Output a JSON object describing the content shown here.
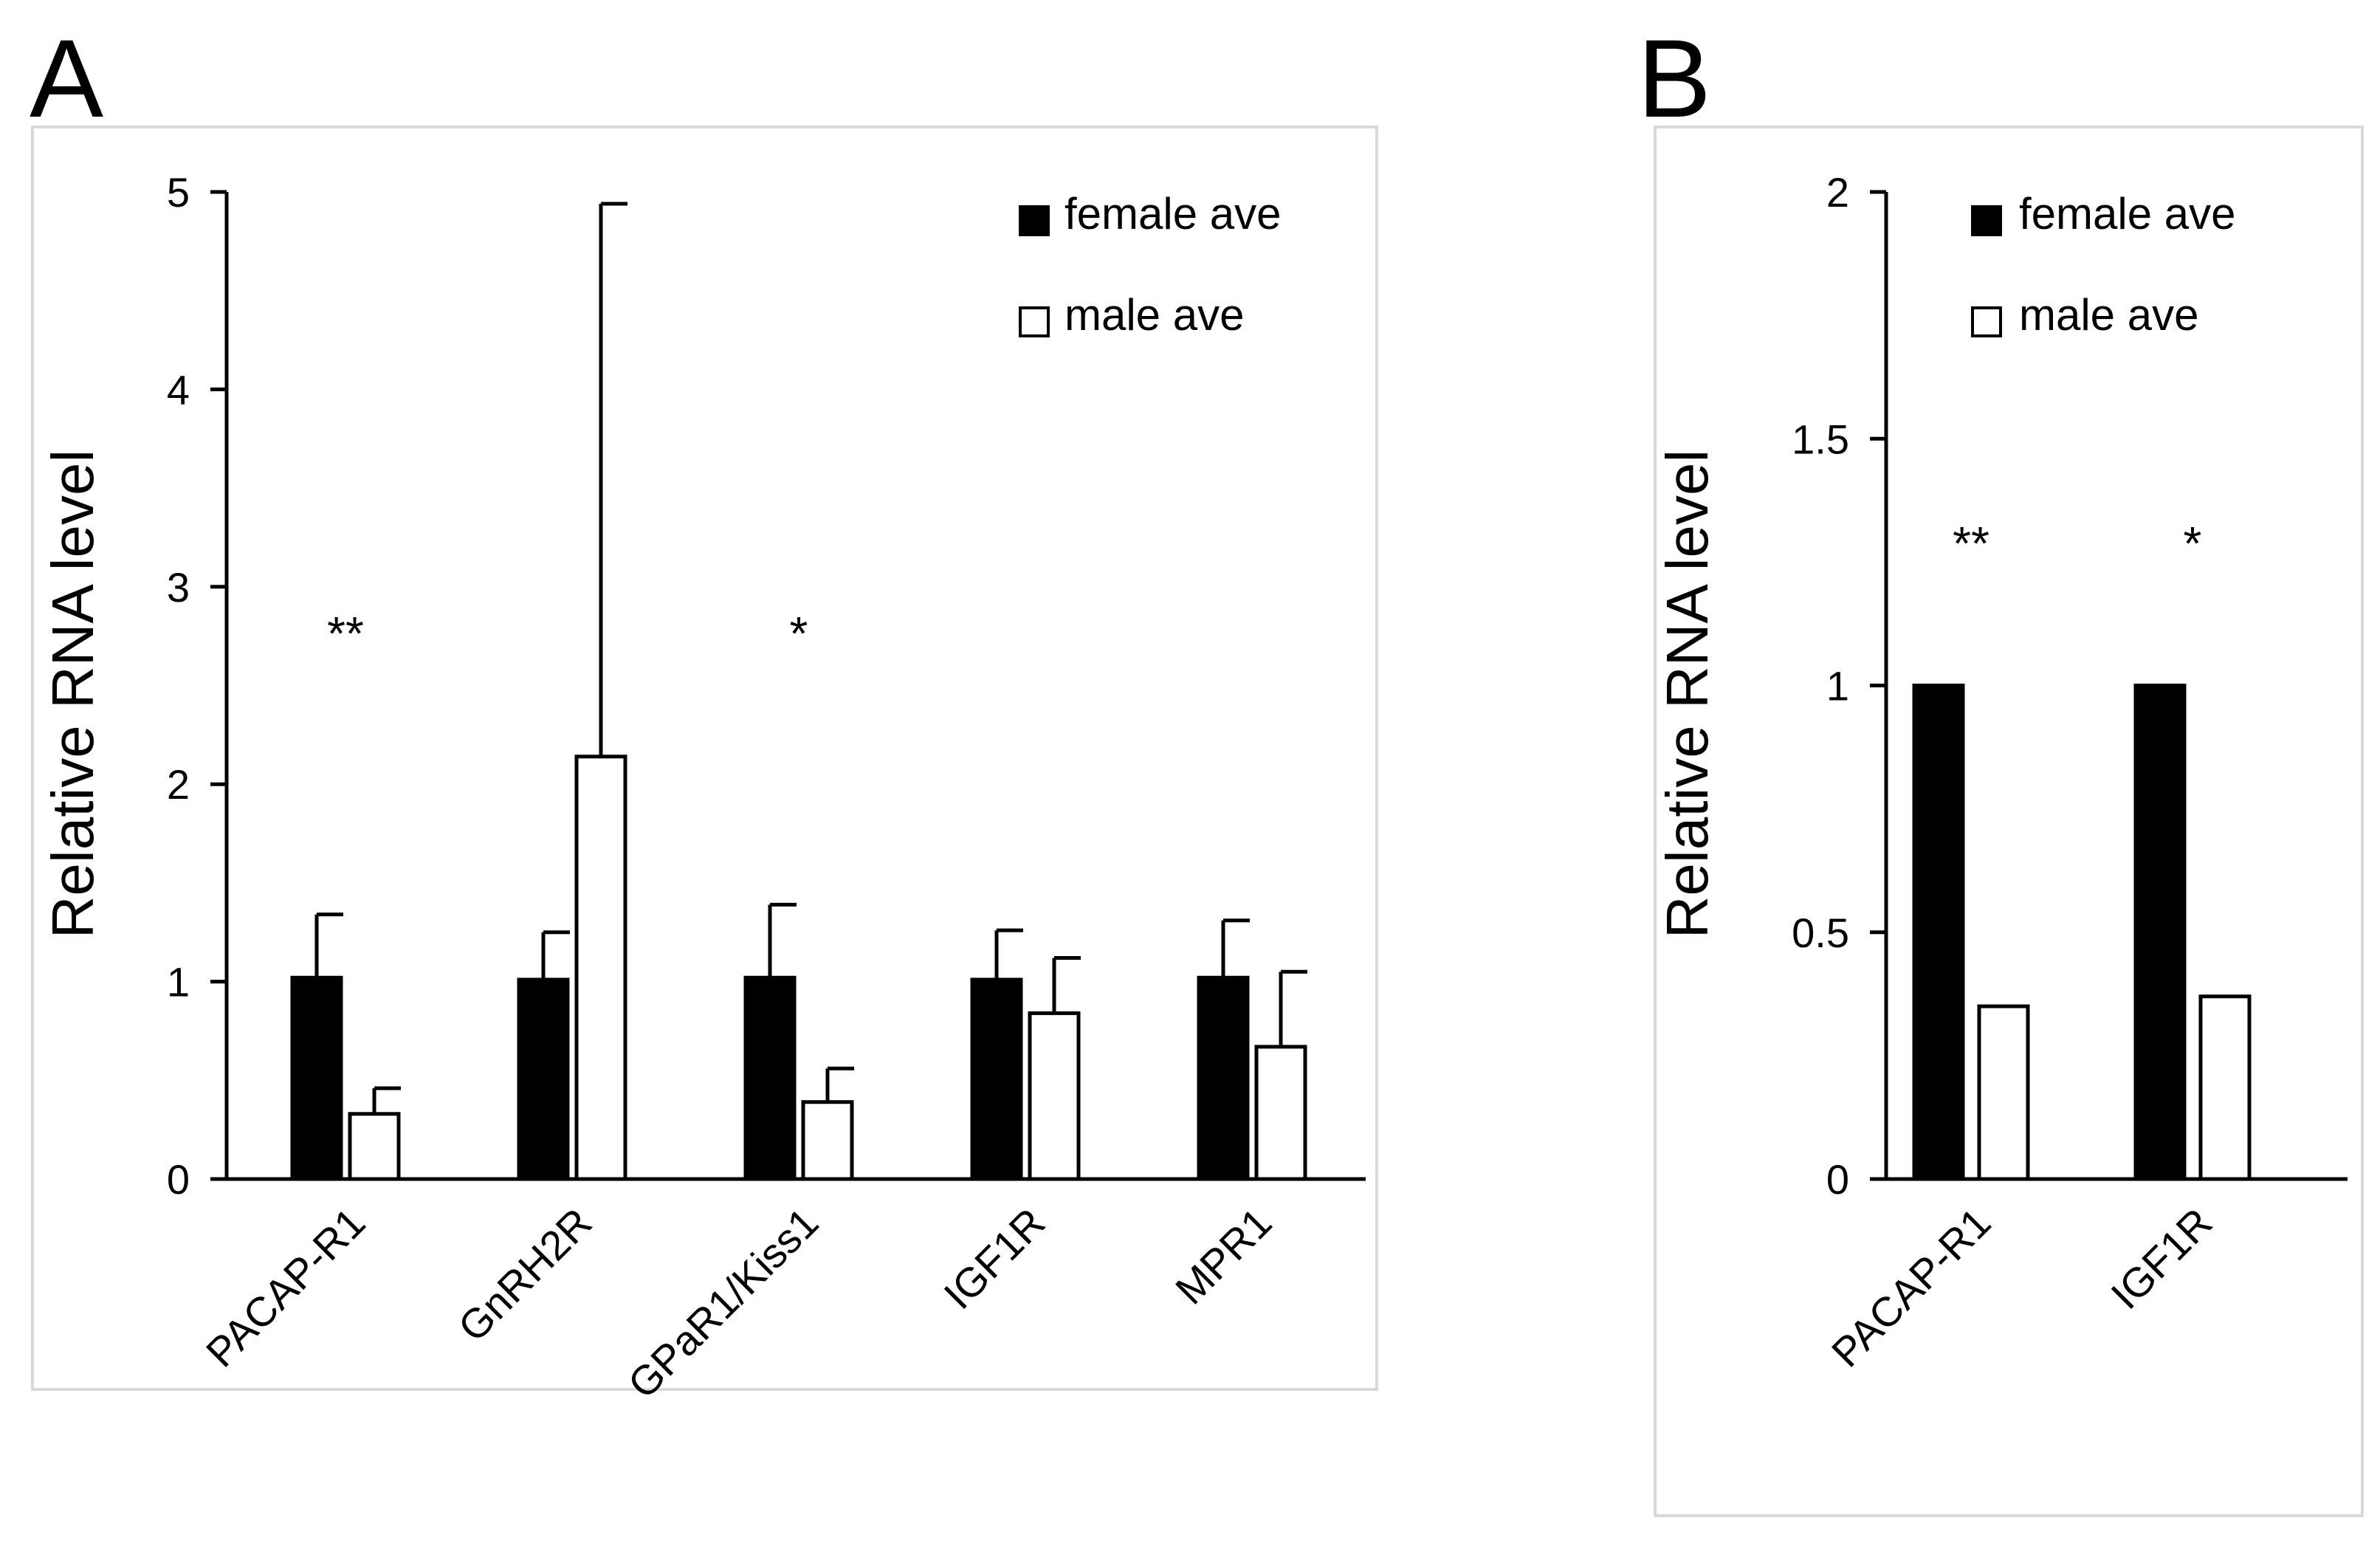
{
  "colors": {
    "female": "#000000",
    "male": "#ffffff",
    "stroke": "#000000",
    "frame": "#d9d9d9"
  },
  "chart_data": [
    {
      "panel": "A",
      "type": "bar",
      "ylabel": "Relative RNA level",
      "ylim": [
        0,
        5
      ],
      "yticks": [
        "0",
        "1",
        "2",
        "3",
        "4",
        "5"
      ],
      "ytick_values": [
        0,
        1,
        2,
        3,
        4,
        5
      ],
      "categories": [
        "PACAP-R1",
        "GnRH2R",
        "GPaR1/Kiss1",
        "IGF1R",
        "MPR1"
      ],
      "series": [
        {
          "name": "female ave",
          "values": [
            1.02,
            1.01,
            1.02,
            1.01,
            1.02
          ],
          "errors": [
            0.32,
            0.24,
            0.37,
            0.25,
            0.29
          ]
        },
        {
          "name": "male ave",
          "values": [
            0.33,
            2.14,
            0.39,
            0.84,
            0.67
          ],
          "errors": [
            0.13,
            2.8,
            0.17,
            0.28,
            0.38
          ]
        }
      ],
      "significance": [
        "**",
        "",
        "*",
        "",
        ""
      ],
      "legend": "top-right"
    },
    {
      "panel": "B",
      "type": "bar",
      "ylabel": "Relative RNA level",
      "ylim": [
        0,
        2
      ],
      "yticks": [
        "0",
        "0.5",
        "1",
        "1.5",
        "2"
      ],
      "ytick_values": [
        0,
        0.5,
        1,
        1.5,
        2
      ],
      "categories": [
        "PACAP-R1",
        "IGF1R"
      ],
      "series": [
        {
          "name": "female ave",
          "values": [
            1.0,
            1.0
          ]
        },
        {
          "name": "male ave",
          "values": [
            0.35,
            0.37
          ]
        }
      ],
      "significance": [
        "**",
        "*"
      ],
      "legend": "top-right"
    }
  ]
}
